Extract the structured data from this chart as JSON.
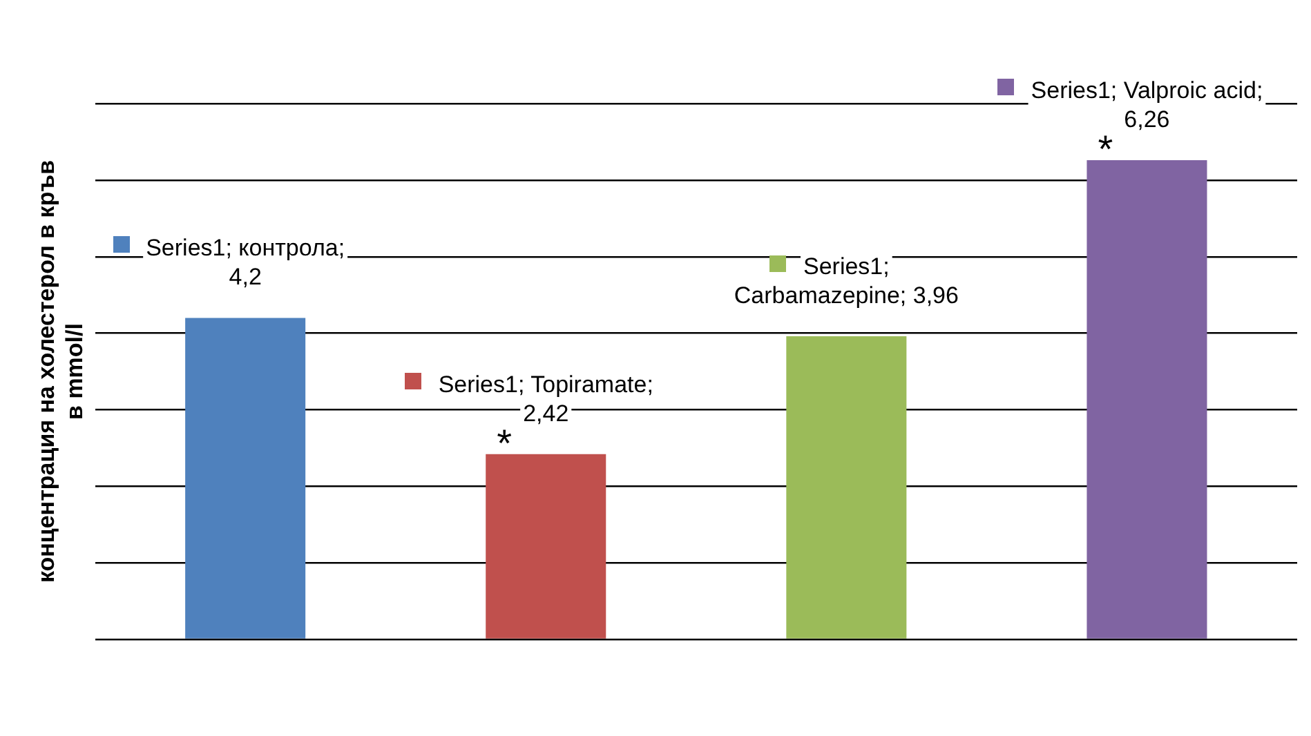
{
  "chart_data": {
    "type": "bar",
    "ylabel": "концентрация на холестерол в кръв в mmol/l",
    "categories": [
      null,
      null,
      null,
      null
    ],
    "series": [
      {
        "colors": [
          "#4f81bd",
          "#c0504d",
          "#9bbb59",
          "#8064a2"
        ],
        "values": [
          4.2,
          2.42,
          3.96,
          6.26
        ],
        "value_labels": [
          "Series1; контрола; 4,2",
          "Series1; Topiramate; 2,42",
          "Series1; Carbamazepine; 3,96",
          "Series1; Valproic acid; 6,26"
        ]
      }
    ],
    "ylim": [
      0,
      7
    ],
    "yticks": [
      {
        "value": 0,
        "label": null
      },
      {
        "value": 1,
        "label": null
      },
      {
        "value": 2,
        "label": null
      },
      {
        "value": 3,
        "label": null
      },
      {
        "value": 4,
        "label": null
      },
      {
        "value": 5,
        "label": null
      },
      {
        "value": 6,
        "label": null
      },
      {
        "value": 7,
        "label": null
      }
    ],
    "annotations": [
      {
        "text": "*",
        "y": 2.42
      },
      {
        "text": "*",
        "y": 6.26
      }
    ],
    "grid": "y",
    "legend": false,
    "tick_labels": false
  }
}
